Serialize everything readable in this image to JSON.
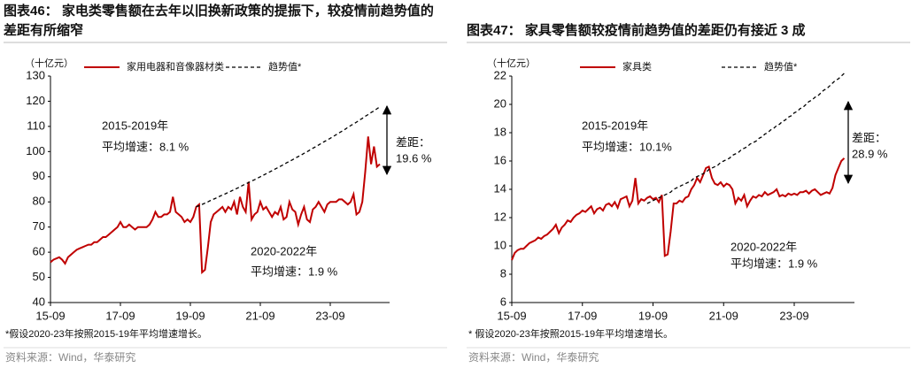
{
  "chart_data": [
    {
      "type": "line",
      "title": "图表46：  家电类零售额在去年以旧换新政策的提振下，较疫情前趋势值的差距有所缩窄",
      "unit_label": "（十亿元）",
      "categories": [
        "15-09",
        null,
        null,
        null,
        null,
        null,
        null,
        null,
        null,
        null,
        null,
        null,
        null,
        null,
        null,
        null,
        null,
        null,
        null,
        null,
        null,
        null,
        null,
        null,
        "17-09",
        null,
        null,
        null,
        null,
        null,
        null,
        null,
        null,
        null,
        null,
        null,
        null,
        null,
        null,
        null,
        null,
        null,
        null,
        null,
        null,
        null,
        null,
        null,
        "19-09",
        null,
        null,
        null,
        null,
        null,
        null,
        null,
        null,
        null,
        null,
        null,
        null,
        null,
        null,
        null,
        null,
        null,
        null,
        null,
        null,
        null,
        null,
        null,
        "21-09",
        null,
        null,
        null,
        null,
        null,
        null,
        null,
        null,
        null,
        null,
        null,
        null,
        null,
        null,
        null,
        null,
        null,
        null,
        null,
        null,
        null,
        null,
        null,
        "23-09",
        null,
        null,
        null,
        null,
        null,
        null,
        null,
        null,
        null,
        null,
        null,
        null,
        null,
        null,
        null,
        null,
        null
      ],
      "series": [
        {
          "name": "家用电器和音像器材类",
          "color": "#c00000",
          "style": "solid",
          "values": [
            56,
            57,
            57.5,
            58,
            57,
            55.5,
            58,
            59,
            60,
            61,
            61.5,
            62,
            62.5,
            63,
            63,
            64,
            64,
            65,
            66,
            66,
            67,
            68,
            69,
            70,
            72,
            70,
            70,
            71,
            70,
            69,
            70,
            70,
            70,
            70,
            71,
            73,
            76,
            74,
            74,
            75,
            75,
            76,
            82,
            76,
            75,
            74,
            72,
            73,
            72,
            74,
            78,
            79,
            52,
            53,
            62,
            72,
            75,
            76,
            77,
            78,
            76,
            78,
            77,
            80,
            75,
            82,
            78,
            76,
            88,
            73,
            75,
            76,
            80,
            77,
            78,
            76,
            74,
            76,
            75,
            78,
            73,
            74,
            80,
            77,
            76,
            71,
            75,
            78,
            73,
            72,
            77,
            78,
            80,
            78,
            76,
            79,
            80,
            80,
            80,
            81,
            81,
            80,
            79,
            80,
            83,
            75,
            76,
            80,
            92,
            106,
            95,
            102,
            94,
            95
          ]
        },
        {
          "name": "趋势值*",
          "color": "#000000",
          "style": "dashed",
          "values": [
            null,
            null,
            null,
            null,
            null,
            null,
            null,
            null,
            null,
            null,
            null,
            null,
            null,
            null,
            null,
            null,
            null,
            null,
            null,
            null,
            null,
            null,
            null,
            null,
            null,
            null,
            null,
            null,
            null,
            null,
            null,
            null,
            null,
            null,
            null,
            null,
            null,
            null,
            null,
            null,
            null,
            null,
            null,
            null,
            null,
            null,
            null,
            null,
            null,
            null,
            78.0,
            78.5,
            79.0,
            79.5,
            80.0,
            80.6,
            81.1,
            81.6,
            82.2,
            82.7,
            83.2,
            83.8,
            84.3,
            84.9,
            85.4,
            86.0,
            86.6,
            87.1,
            87.7,
            88.3,
            88.8,
            89.4,
            90.0,
            90.6,
            91.2,
            91.8,
            92.4,
            93.0,
            93.6,
            94.2,
            94.8,
            95.5,
            96.1,
            96.7,
            97.4,
            98.0,
            98.6,
            99.3,
            99.9,
            100.6,
            101.3,
            101.9,
            102.6,
            103.3,
            104.0,
            104.6,
            105.3,
            106.0,
            106.7,
            107.4,
            108.1,
            108.8,
            109.6,
            110.3,
            111.0,
            111.7,
            112.5,
            113.2,
            114.0,
            114.7,
            115.5,
            116.2,
            117.0,
            117.8
          ]
        }
      ],
      "ylim": [
        40,
        130
      ],
      "yticks": [
        40,
        50,
        60,
        70,
        80,
        90,
        100,
        110,
        120,
        130
      ],
      "annotations": [
        "2015-2019年",
        "平均增速：8.1 %",
        "2020-2022年",
        "平均增速：1.9 %",
        "差距：",
        "19.6 %"
      ],
      "footnote": "*假设2020-23年按照2015-19年平均增速增长。",
      "source": "资料来源：Wind，华泰研究"
    },
    {
      "type": "line",
      "title": "图表47：  家具零售额较疫情前趋势值的差距仍有接近 3 成",
      "unit_label": "（十亿元）",
      "categories": [
        "15-09",
        null,
        null,
        null,
        null,
        null,
        null,
        null,
        null,
        null,
        null,
        null,
        null,
        null,
        null,
        null,
        null,
        null,
        null,
        null,
        null,
        null,
        null,
        null,
        "17-09",
        null,
        null,
        null,
        null,
        null,
        null,
        null,
        null,
        null,
        null,
        null,
        null,
        null,
        null,
        null,
        null,
        null,
        null,
        null,
        null,
        null,
        null,
        null,
        "19-09",
        null,
        null,
        null,
        null,
        null,
        null,
        null,
        null,
        null,
        null,
        null,
        null,
        null,
        null,
        null,
        null,
        null,
        null,
        null,
        null,
        null,
        null,
        null,
        "21-09",
        null,
        null,
        null,
        null,
        null,
        null,
        null,
        null,
        null,
        null,
        null,
        null,
        null,
        null,
        null,
        null,
        null,
        null,
        null,
        null,
        null,
        null,
        null,
        "23-09",
        null,
        null,
        null,
        null,
        null,
        null,
        null,
        null,
        null,
        null,
        null,
        null,
        null,
        null,
        null,
        null,
        null
      ],
      "series": [
        {
          "name": "家具类",
          "color": "#c00000",
          "style": "solid",
          "values": [
            9.0,
            9.5,
            9.7,
            9.8,
            9.8,
            10.0,
            10.2,
            10.3,
            10.4,
            10.6,
            10.5,
            10.7,
            10.8,
            11.0,
            11.2,
            11.5,
            10.9,
            11.3,
            11.5,
            11.8,
            11.7,
            12.0,
            12.2,
            12.3,
            12.5,
            12.4,
            12.6,
            12.8,
            12.3,
            12.6,
            12.7,
            12.5,
            12.9,
            13.0,
            12.8,
            13.1,
            12.7,
            13.3,
            13.4,
            13.5,
            12.8,
            13.2,
            14.8,
            13.0,
            13.3,
            13.2,
            13.4,
            13.5,
            13.3,
            13.4,
            13.1,
            13.6,
            9.3,
            9.4,
            11.0,
            13.0,
            13.0,
            13.2,
            13.1,
            13.4,
            13.5,
            14.0,
            14.3,
            14.8,
            14.5,
            15.0,
            15.5,
            15.6,
            14.8,
            14.4,
            14.3,
            14.5,
            14.2,
            14.4,
            14.3,
            14.0,
            13.0,
            13.4,
            13.2,
            13.6,
            12.8,
            13.2,
            13.5,
            13.4,
            13.6,
            13.5,
            13.8,
            13.6,
            13.7,
            13.8,
            14.0,
            13.5,
            13.6,
            13.5,
            13.7,
            13.6,
            13.7,
            13.6,
            13.8,
            13.8,
            13.9,
            13.7,
            13.9,
            14.0,
            13.8,
            13.6,
            13.7,
            13.8,
            13.7,
            14.1,
            15.0,
            15.5,
            16.0,
            16.2
          ]
        },
        {
          "name": "趋势值*",
          "color": "#000000",
          "style": "dashed",
          "values": [
            null,
            null,
            null,
            null,
            null,
            null,
            null,
            null,
            null,
            null,
            null,
            null,
            null,
            null,
            null,
            null,
            null,
            null,
            null,
            null,
            null,
            null,
            null,
            null,
            null,
            null,
            null,
            null,
            null,
            null,
            null,
            null,
            null,
            null,
            null,
            null,
            null,
            null,
            null,
            null,
            null,
            null,
            null,
            null,
            null,
            null,
            13.0,
            13.1,
            13.2,
            13.3,
            13.4,
            13.5,
            13.6,
            13.7,
            13.8,
            14.0,
            14.1,
            14.2,
            14.3,
            14.4,
            14.5,
            14.6,
            14.8,
            14.9,
            15.0,
            15.1,
            15.2,
            15.4,
            15.5,
            15.6,
            15.7,
            15.9,
            16.0,
            16.1,
            16.2,
            16.4,
            16.5,
            16.6,
            16.8,
            16.9,
            17.0,
            17.2,
            17.3,
            17.4,
            17.6,
            17.7,
            17.9,
            18.0,
            18.2,
            18.3,
            18.5,
            18.6,
            18.8,
            18.9,
            19.1,
            19.2,
            19.4,
            19.5,
            19.7,
            19.8,
            20.0,
            20.2,
            20.3,
            20.5,
            20.6,
            20.8,
            21.0,
            21.1,
            21.3,
            21.5,
            21.7,
            21.8,
            22.0,
            22.2
          ]
        }
      ],
      "ylim": [
        6,
        22
      ],
      "yticks": [
        6,
        8,
        10,
        12,
        14,
        16,
        18,
        20,
        22
      ],
      "annotations": [
        "2015-2019年",
        "平均增速：10.1%",
        "2020-2022年",
        "平均增速：1.9 %",
        "差距：",
        "28.9  %"
      ],
      "footnote": "* 假设2020-23年按照2015-19年平均增速增长。",
      "source": "资料来源：Wind，华泰研究"
    }
  ]
}
